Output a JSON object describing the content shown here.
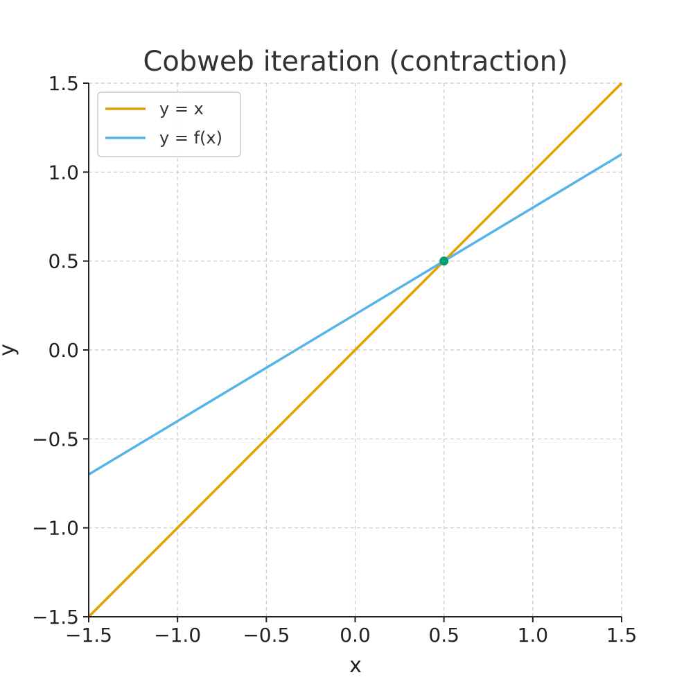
{
  "chart_data": {
    "type": "line",
    "title": "Cobweb iteration (contraction)",
    "xlabel": "x",
    "ylabel": "y",
    "xlim": [
      -1.5,
      1.5
    ],
    "ylim": [
      -1.5,
      1.5
    ],
    "x_ticks": [
      -1.5,
      -1.0,
      -0.5,
      0.0,
      0.5,
      1.0,
      1.5
    ],
    "y_ticks": [
      -1.5,
      -1.0,
      -0.5,
      0.0,
      0.5,
      1.0,
      1.5
    ],
    "x_tick_labels": [
      "−1.5",
      "−1.0",
      "−0.5",
      "0.0",
      "0.5",
      "1.0",
      "1.5"
    ],
    "y_tick_labels": [
      "−1.5",
      "−1.0",
      "−0.5",
      "0.0",
      "0.5",
      "1.0",
      "1.5"
    ],
    "grid": true,
    "legend_position": "top-left",
    "series": [
      {
        "name": "y = x",
        "color": "#E69F00",
        "x": [
          -1.5,
          1.5
        ],
        "y": [
          -1.5,
          1.5
        ]
      },
      {
        "name": "y = f(x)",
        "color": "#56B4E9",
        "x": [
          -1.5,
          1.5
        ],
        "y": [
          -0.7,
          1.1
        ]
      }
    ],
    "points": [
      {
        "x": 0.5,
        "y": 0.5,
        "color": "#009E73"
      }
    ]
  }
}
